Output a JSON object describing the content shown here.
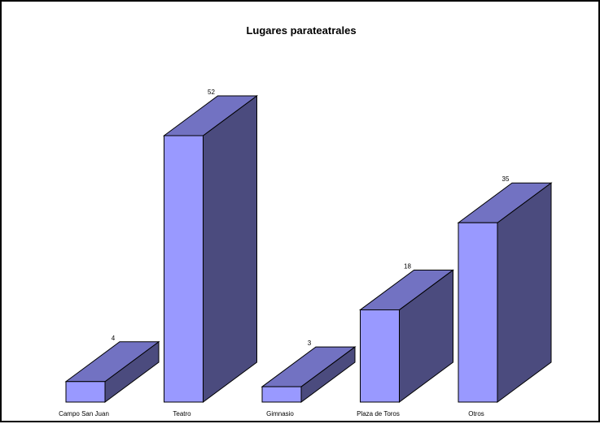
{
  "chart_data": {
    "type": "bar",
    "title": "Lugares parateatrales",
    "categories": [
      "Campo San Juan",
      "Teatro",
      "Gimnasio",
      "Plaza de Toros",
      "Otros"
    ],
    "values": [
      4,
      52,
      3,
      18,
      35
    ],
    "xlabel": "",
    "ylabel": "",
    "ylim": [
      0,
      52
    ],
    "grid": false,
    "legend": "none",
    "style": "3d-bar",
    "colors": {
      "front": "#9999ff",
      "top": "#7272c2",
      "side": "#4b4b7e",
      "stroke": "#000000",
      "background": "#ffffff"
    }
  }
}
